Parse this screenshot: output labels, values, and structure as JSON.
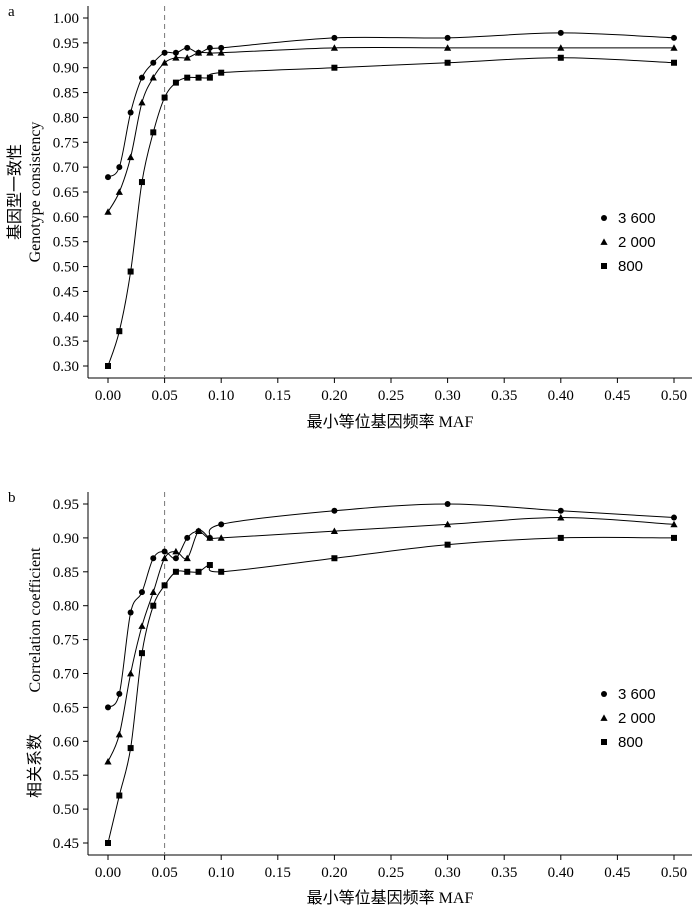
{
  "chart_data": [
    {
      "type": "line",
      "panel_label": "a",
      "title": "",
      "xlabel": "最小等位基因频率 MAF",
      "ylabel_cn": "基因型一致性",
      "ylabel_en": "Genotype consistency",
      "xlim": [
        0,
        0.5
      ],
      "ylim": [
        0.3,
        1.0
      ],
      "xticks": [
        "0.00",
        "0.05",
        "0.10",
        "0.15",
        "0.20",
        "0.25",
        "0.30",
        "0.35",
        "0.40",
        "0.45",
        "0.50"
      ],
      "yticks": [
        "0.30",
        "0.35",
        "0.40",
        "0.45",
        "0.50",
        "0.55",
        "0.60",
        "0.65",
        "0.70",
        "0.75",
        "0.80",
        "0.85",
        "0.90",
        "0.95",
        "1.00"
      ],
      "vline_x": 0.05,
      "legend_position": "right",
      "series": [
        {
          "name": "3 600",
          "marker": "circle",
          "x": [
            0,
            0.01,
            0.02,
            0.03,
            0.04,
            0.05,
            0.06,
            0.07,
            0.08,
            0.09,
            0.1,
            0.2,
            0.3,
            0.4,
            0.5
          ],
          "y": [
            0.68,
            0.7,
            0.81,
            0.88,
            0.91,
            0.93,
            0.93,
            0.94,
            0.93,
            0.94,
            0.94,
            0.96,
            0.96,
            0.97,
            0.96
          ]
        },
        {
          "name": "2 000",
          "marker": "triangle",
          "x": [
            0,
            0.01,
            0.02,
            0.03,
            0.04,
            0.05,
            0.06,
            0.07,
            0.08,
            0.09,
            0.1,
            0.2,
            0.3,
            0.4,
            0.5
          ],
          "y": [
            0.61,
            0.65,
            0.72,
            0.83,
            0.88,
            0.91,
            0.92,
            0.92,
            0.93,
            0.93,
            0.93,
            0.94,
            0.94,
            0.94,
            0.94
          ]
        },
        {
          "name": "800",
          "marker": "square",
          "x": [
            0,
            0.01,
            0.02,
            0.03,
            0.04,
            0.05,
            0.06,
            0.07,
            0.08,
            0.09,
            0.1,
            0.2,
            0.3,
            0.4,
            0.5
          ],
          "y": [
            0.3,
            0.37,
            0.49,
            0.67,
            0.77,
            0.84,
            0.87,
            0.88,
            0.88,
            0.88,
            0.89,
            0.9,
            0.91,
            0.92,
            0.91
          ]
        }
      ]
    },
    {
      "type": "line",
      "panel_label": "b",
      "title": "",
      "xlabel": "最小等位基因频率 MAF",
      "ylabel_cn": "相关系数",
      "ylabel_en": "Correlation coefficient",
      "xlim": [
        0,
        0.5
      ],
      "ylim": [
        0.45,
        0.95
      ],
      "xticks": [
        "0.00",
        "0.05",
        "0.10",
        "0.15",
        "0.20",
        "0.25",
        "0.30",
        "0.35",
        "0.40",
        "0.45",
        "0.50"
      ],
      "yticks": [
        "0.45",
        "0.50",
        "0.55",
        "0.60",
        "0.65",
        "0.70",
        "0.75",
        "0.80",
        "0.85",
        "0.90",
        "0.95"
      ],
      "vline_x": 0.05,
      "legend_position": "right",
      "series": [
        {
          "name": "3 600",
          "marker": "circle",
          "x": [
            0,
            0.01,
            0.02,
            0.03,
            0.04,
            0.05,
            0.06,
            0.07,
            0.08,
            0.09,
            0.1,
            0.2,
            0.3,
            0.4,
            0.5
          ],
          "y": [
            0.65,
            0.67,
            0.79,
            0.82,
            0.87,
            0.88,
            0.87,
            0.9,
            0.91,
            0.9,
            0.92,
            0.94,
            0.95,
            0.94,
            0.93
          ]
        },
        {
          "name": "2 000",
          "marker": "triangle",
          "x": [
            0,
            0.01,
            0.02,
            0.03,
            0.04,
            0.05,
            0.06,
            0.07,
            0.08,
            0.09,
            0.1,
            0.2,
            0.3,
            0.4,
            0.5
          ],
          "y": [
            0.57,
            0.61,
            0.7,
            0.77,
            0.82,
            0.87,
            0.88,
            0.87,
            0.91,
            0.9,
            0.9,
            0.91,
            0.92,
            0.93,
            0.92
          ]
        },
        {
          "name": "800",
          "marker": "square",
          "x": [
            0,
            0.01,
            0.02,
            0.03,
            0.04,
            0.05,
            0.06,
            0.07,
            0.08,
            0.09,
            0.1,
            0.2,
            0.3,
            0.4,
            0.5
          ],
          "y": [
            0.45,
            0.52,
            0.59,
            0.73,
            0.8,
            0.83,
            0.85,
            0.85,
            0.85,
            0.86,
            0.85,
            0.87,
            0.89,
            0.9,
            0.9
          ]
        }
      ]
    }
  ]
}
